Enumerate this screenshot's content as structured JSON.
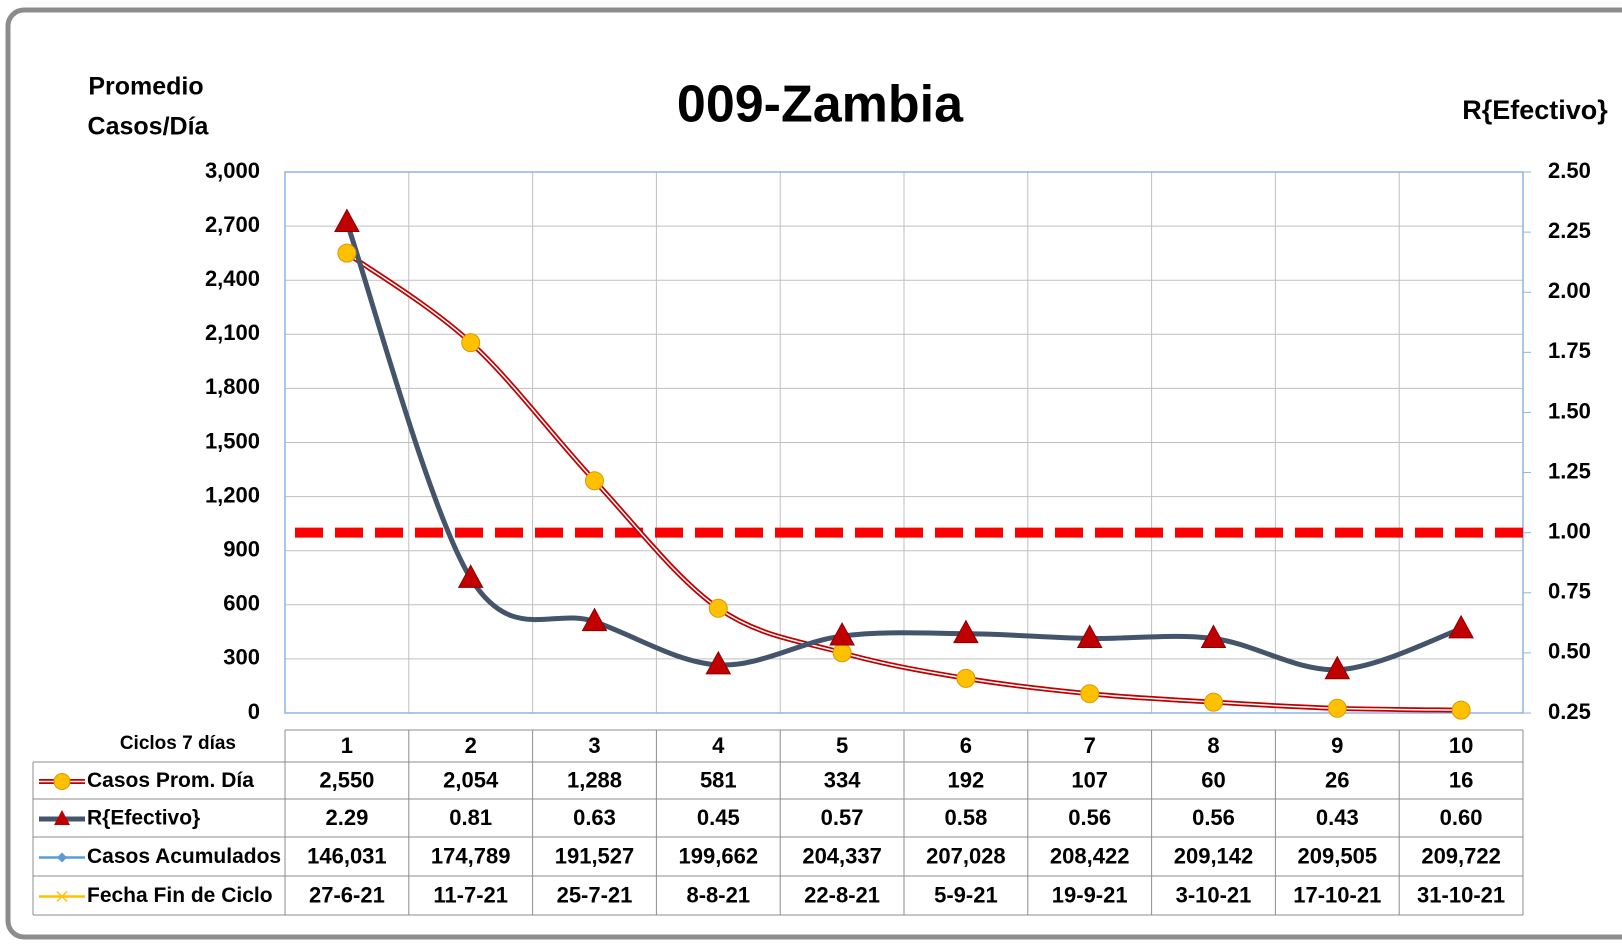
{
  "chart_data": {
    "type": "line",
    "title": "009-Zambia",
    "y_label": [
      "Promedio",
      "Casos/Día"
    ],
    "y2_label": "R{Efectivo}",
    "x_label": "Ciclos 7 días",
    "categories": [
      "1",
      "2",
      "3",
      "4",
      "5",
      "6",
      "7",
      "8",
      "9",
      "10"
    ],
    "ylim": [
      0,
      3000
    ],
    "yticks": [
      0,
      300,
      600,
      900,
      {
        "value": 1200,
        "label": "1,200"
      },
      {
        "value": 1500,
        "label": "1,500"
      },
      {
        "value": 1800,
        "label": "1,800"
      },
      {
        "value": 2100,
        "label": "2,100"
      },
      {
        "value": 2400,
        "label": "2,400"
      },
      {
        "value": 2700,
        "label": "2,700"
      },
      {
        "value": 3000,
        "label": "3,000"
      }
    ],
    "y2lim": [
      0.25,
      2.5
    ],
    "y2ticks": [
      0.25,
      {
        "value": 0.5,
        "label": "0.50"
      },
      0.75,
      {
        "value": 1,
        "label": "1.00"
      },
      1.25,
      {
        "value": 1.5,
        "label": "1.50"
      },
      1.75,
      {
        "value": 2,
        "label": "2.00"
      },
      2.25,
      {
        "value": 2.5,
        "label": "2.50"
      }
    ],
    "grid": true,
    "reference_line": {
      "value": 1,
      "axis": "y2",
      "color": "#ff0000"
    },
    "series": [
      {
        "name": "Casos Prom. Día",
        "color": "#c00000",
        "marker_color": "#ffc000",
        "values": [
          2550,
          2054,
          1288,
          581,
          334,
          192,
          107,
          60,
          26,
          16
        ],
        "value_labels": [
          "2,550",
          "2,054",
          "1,288",
          "581",
          "334",
          "192",
          "107",
          "60",
          "26",
          "16"
        ]
      },
      {
        "name": "R{Efectivo}",
        "color": "#44546a",
        "marker_color": "#c00000",
        "axis": "y2",
        "values": [
          2.29,
          0.81,
          0.63,
          0.45,
          0.57,
          0.58,
          0.56,
          0.56,
          0.43,
          0.6
        ],
        "value_labels": [
          "2.29",
          "0.81",
          "0.63",
          "0.45",
          "0.57",
          "0.58",
          "0.56",
          "0.56",
          "0.43",
          "0.60"
        ]
      },
      {
        "name": "Casos Acumulados",
        "color": "#5b9bd5",
        "hidden": true,
        "values": [
          146031,
          174789,
          191527,
          199662,
          204337,
          207028,
          208422,
          209142,
          209505,
          209722
        ],
        "value_labels": [
          "146,031",
          "174,789",
          "191,527",
          "199,662",
          "204,337",
          "207,028",
          "208,422",
          "209,142",
          "209,505",
          "209,722"
        ]
      },
      {
        "name": "Fecha Fin de Ciclo",
        "color": "#ffc000",
        "hidden": true,
        "labels": [
          "27-6-21",
          "11-7-21",
          "25-7-21",
          "8-8-21",
          "22-8-21",
          "5-9-21",
          "19-9-21",
          "3-10-21",
          "17-10-21",
          "31-10-21"
        ]
      }
    ]
  }
}
